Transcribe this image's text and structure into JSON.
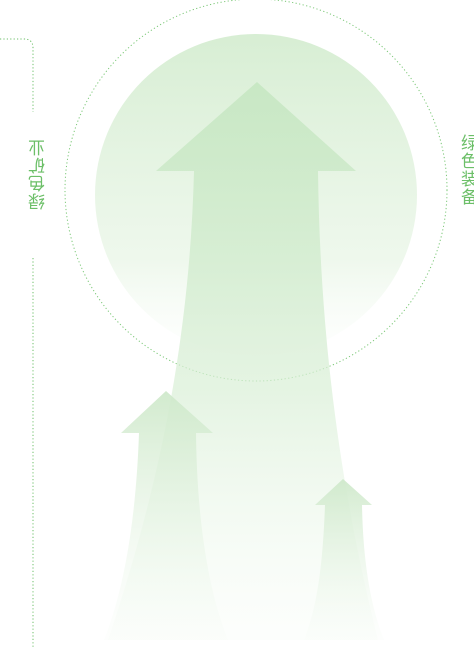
{
  "labels": {
    "left": "绿色矿业",
    "right": "绿色装备"
  },
  "colors": {
    "accent": "#6cbf68",
    "fill_light": "#d4ecd2"
  }
}
